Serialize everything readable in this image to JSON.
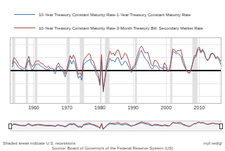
{
  "chart_data": {
    "type": "line",
    "x": [
      1953.5,
      1954,
      1954.5,
      1955,
      1955.5,
      1956,
      1956.5,
      1957,
      1957.5,
      1958,
      1958.5,
      1959,
      1959.5,
      1960,
      1960.5,
      1961,
      1961.5,
      1962,
      1962.5,
      1963,
      1963.5,
      1964,
      1964.5,
      1965,
      1965.5,
      1966,
      1966.5,
      1967,
      1967.5,
      1968,
      1968.5,
      1969,
      1969.5,
      1970,
      1970.5,
      1971,
      1971.5,
      1972,
      1972.5,
      1973,
      1973.5,
      1974,
      1974.5,
      1975,
      1975.5,
      1976,
      1976.5,
      1977,
      1977.5,
      1978,
      1978.5,
      1979,
      1979.5,
      1980,
      1980.3,
      1980.5,
      1980.8,
      1981,
      1981.5,
      1982,
      1982.5,
      1983,
      1983.5,
      1984,
      1984.5,
      1985,
      1985.5,
      1986,
      1986.5,
      1987,
      1987.5,
      1988,
      1988.5,
      1989,
      1989.5,
      1990,
      1990.5,
      1991,
      1991.5,
      1992,
      1992.5,
      1993,
      1993.5,
      1994,
      1994.5,
      1995,
      1995.5,
      1996,
      1996.5,
      1997,
      1997.5,
      1998,
      1998.5,
      1999,
      1999.5,
      2000,
      2000.5,
      2001,
      2001.5,
      2002,
      2002.5,
      2003,
      2003.5,
      2004,
      2004.5,
      2005,
      2005.5,
      2006,
      2006.5,
      2007,
      2007.5,
      2008,
      2008.5,
      2009,
      2009.5,
      2010,
      2010.5,
      2011,
      2011.5,
      2012,
      2012.5,
      2013,
      2013.5,
      2014,
      2014.5,
      2015,
      2015.5,
      2016,
      2016.5
    ],
    "series": [
      {
        "name": "10-Year Treasury Constant Maturity Rate-1-Year Treasury Constant Maturity Rate",
        "color": "#4572a7",
        "line_style": "solid",
        "values": [
          0.5,
          1.4,
          1.2,
          0.8,
          0.4,
          0.3,
          0.2,
          0.0,
          0.1,
          1.0,
          1.6,
          0.6,
          0.1,
          0.3,
          0.9,
          1.0,
          1.0,
          0.7,
          0.6,
          0.4,
          0.2,
          0.1,
          0.3,
          0.0,
          0.1,
          -0.1,
          -0.5,
          0.4,
          0.7,
          0.2,
          0.1,
          -0.3,
          -1.0,
          -0.3,
          0.6,
          1.6,
          1.0,
          1.6,
          1.0,
          -0.2,
          -1.2,
          -0.8,
          -1.5,
          0.8,
          1.2,
          1.4,
          1.6,
          1.7,
          1.0,
          0.8,
          0.2,
          -0.7,
          -1.0,
          -2.3,
          0.8,
          1.6,
          -1.8,
          -3.3,
          -1.5,
          0.2,
          1.2,
          1.9,
          1.5,
          1.6,
          1.3,
          1.9,
          2.0,
          1.4,
          0.8,
          1.0,
          1.5,
          1.3,
          0.8,
          0.3,
          -0.3,
          0.4,
          0.5,
          1.1,
          1.8,
          2.7,
          3.1,
          2.6,
          2.0,
          1.7,
          1.4,
          0.8,
          0.3,
          0.3,
          0.8,
          0.7,
          0.5,
          0.1,
          0.0,
          0.0,
          0.6,
          0.3,
          -0.2,
          0.2,
          1.5,
          3.0,
          2.8,
          2.6,
          2.7,
          2.4,
          2.2,
          1.2,
          0.6,
          0.1,
          -0.3,
          -0.4,
          0.0,
          1.2,
          2.0,
          2.1,
          3.1,
          3.3,
          2.7,
          3.1,
          2.7,
          1.9,
          1.5,
          1.8,
          2.4,
          2.6,
          2.4,
          1.8,
          2.0,
          1.6,
          0.9
        ]
      },
      {
        "name": "10-Year Treasury Constant Maturity Rate-3-Month Treasury Bill: Secondary Market Rate",
        "color": "#aa4643",
        "line_style": "solid",
        "values": [
          1.0,
          2.0,
          1.8,
          1.3,
          0.9,
          0.6,
          0.5,
          0.3,
          0.4,
          1.5,
          2.2,
          1.2,
          0.6,
          0.8,
          1.4,
          1.5,
          1.5,
          1.2,
          1.1,
          0.9,
          0.6,
          0.5,
          0.7,
          0.3,
          0.4,
          0.2,
          0.0,
          0.8,
          1.2,
          0.6,
          0.5,
          0.1,
          -0.5,
          0.3,
          1.2,
          2.3,
          1.8,
          2.4,
          1.8,
          0.5,
          -0.6,
          -0.3,
          -0.8,
          1.4,
          1.9,
          2.2,
          2.6,
          2.5,
          1.6,
          1.5,
          0.8,
          -0.1,
          -0.5,
          -2.0,
          1.5,
          2.5,
          -1.0,
          -3.0,
          -1.0,
          0.8,
          2.0,
          3.0,
          2.5,
          2.7,
          2.3,
          3.0,
          3.2,
          2.6,
          1.7,
          2.1,
          2.7,
          2.5,
          1.8,
          1.0,
          0.0,
          0.6,
          0.8,
          1.8,
          2.5,
          3.4,
          3.8,
          3.4,
          2.8,
          2.7,
          2.8,
          1.9,
          0.9,
          0.7,
          1.6,
          1.5,
          1.2,
          0.5,
          0.4,
          0.3,
          1.2,
          0.8,
          -0.1,
          -0.1,
          1.5,
          3.3,
          3.2,
          2.8,
          3.1,
          3.1,
          3.2,
          1.9,
          1.1,
          0.3,
          -0.2,
          -0.4,
          0.2,
          1.1,
          2.3,
          2.3,
          3.4,
          3.6,
          2.9,
          3.3,
          2.8,
          1.9,
          1.6,
          1.9,
          2.6,
          2.7,
          2.5,
          1.9,
          2.2,
          1.9,
          1.4
        ]
      }
    ],
    "recessions": [
      [
        1953.5,
        1954.4
      ],
      [
        1957.6,
        1958.3
      ],
      [
        1960.3,
        1961.1
      ],
      [
        1969.9,
        1970.9
      ],
      [
        1973.9,
        1975.2
      ],
      [
        1980.0,
        1980.5
      ],
      [
        1981.5,
        1982.9
      ],
      [
        1990.5,
        1991.2
      ],
      [
        2001.2,
        2001.9
      ],
      [
        2007.9,
        2009.5
      ]
    ],
    "xlim": [
      1953,
      2016.5
    ],
    "xticks": [
      1960,
      1970,
      1980,
      1990,
      2000,
      2010
    ],
    "ylim": [
      -5,
      5
    ],
    "yticks": [
      -4,
      -2,
      0,
      2,
      4
    ],
    "tick_labels": "x",
    "grid": true,
    "legend": "top-left",
    "annotations": [
      "Shaded areas indicate U.S. recessions",
      "myf.red/g/",
      "Source: Board of Governors of the Federal Reserve System (US)"
    ]
  }
}
